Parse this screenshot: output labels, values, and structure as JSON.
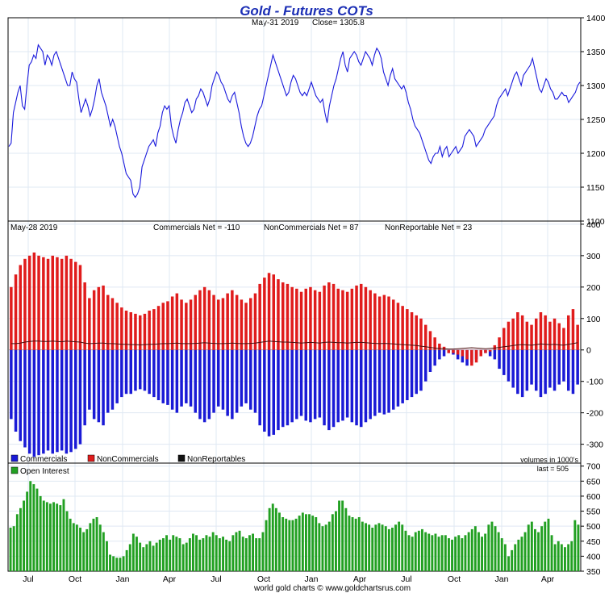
{
  "title": "Gold - Futures COTs",
  "footer": "world gold charts © www.goldchartsrus.com",
  "x_axis": {
    "labels": [
      "Jul",
      "Oct",
      "Jan",
      "Apr",
      "Jul",
      "Oct",
      "Jan",
      "Apr",
      "Jul",
      "Oct",
      "Jan",
      "Apr"
    ]
  },
  "price_panel": {
    "subtitle_date": "May-31  2019",
    "subtitle_close": "Close= 1305.8",
    "line_color": "#1a1adc",
    "ylim": [
      1100,
      1400
    ],
    "yticks": [
      "1400",
      "1350",
      "1300",
      "1250",
      "1200",
      "1150",
      "1100"
    ]
  },
  "cot_panel": {
    "date": "May-28  2019",
    "commercials_label": "Commercials Net = -110",
    "noncommercials_label": "NonCommercials Net = 87",
    "nonreportable_label": "NonReportable Net = 23",
    "volume_note": "volumes in 1000's",
    "ylim": [
      -360,
      410
    ],
    "yticks": [
      "400",
      "300",
      "200",
      "100",
      "0",
      "-100",
      "-200",
      "-300"
    ],
    "legend": [
      {
        "label": "Commercials",
        "color": "#1a1ad6"
      },
      {
        "label": "NonCommercials",
        "color": "#e01c1c"
      },
      {
        "label": "NonReportables",
        "color": "#111111"
      }
    ]
  },
  "oi_panel": {
    "legend_label": "Open Interest",
    "legend_color": "#22a022",
    "last_label": "last = 505",
    "ylim": [
      350,
      710
    ],
    "yticks": [
      "700",
      "650",
      "600",
      "550",
      "500",
      "450",
      "400",
      "350"
    ]
  },
  "chart_data": {
    "type": "line+bar",
    "title": "Gold - Futures COTs",
    "x_range": [
      "2017-06",
      "2019-05"
    ],
    "price_line": {
      "name": "Gold price",
      "values": [
        1210,
        1215,
        1260,
        1275,
        1290,
        1300,
        1270,
        1265,
        1300,
        1330,
        1335,
        1345,
        1340,
        1360,
        1355,
        1350,
        1330,
        1345,
        1340,
        1330,
        1345,
        1350,
        1340,
        1330,
        1320,
        1310,
        1300,
        1300,
        1320,
        1310,
        1305,
        1280,
        1260,
        1270,
        1280,
        1270,
        1255,
        1265,
        1280,
        1300,
        1310,
        1290,
        1280,
        1270,
        1255,
        1240,
        1250,
        1240,
        1225,
        1210,
        1200,
        1185,
        1170,
        1165,
        1160,
        1140,
        1135,
        1140,
        1150,
        1180,
        1190,
        1200,
        1210,
        1215,
        1220,
        1210,
        1230,
        1240,
        1260,
        1270,
        1265,
        1270,
        1240,
        1225,
        1215,
        1235,
        1250,
        1260,
        1275,
        1280,
        1270,
        1260,
        1265,
        1280,
        1285,
        1295,
        1290,
        1280,
        1270,
        1280,
        1300,
        1310,
        1320,
        1315,
        1305,
        1300,
        1290,
        1280,
        1275,
        1285,
        1290,
        1275,
        1260,
        1240,
        1225,
        1215,
        1210,
        1215,
        1225,
        1240,
        1255,
        1265,
        1270,
        1285,
        1300,
        1315,
        1330,
        1345,
        1335,
        1325,
        1315,
        1305,
        1295,
        1285,
        1290,
        1305,
        1315,
        1310,
        1300,
        1290,
        1285,
        1290,
        1285,
        1295,
        1305,
        1295,
        1285,
        1280,
        1275,
        1280,
        1260,
        1245,
        1270,
        1285,
        1300,
        1310,
        1325,
        1340,
        1350,
        1330,
        1320,
        1340,
        1345,
        1350,
        1345,
        1335,
        1330,
        1340,
        1350,
        1345,
        1340,
        1330,
        1345,
        1355,
        1350,
        1340,
        1320,
        1310,
        1300,
        1315,
        1325,
        1310,
        1305,
        1300,
        1295,
        1300,
        1290,
        1275,
        1265,
        1250,
        1240,
        1235,
        1230,
        1220,
        1210,
        1200,
        1190,
        1185,
        1195,
        1200,
        1200,
        1210,
        1195,
        1205,
        1210,
        1195,
        1200,
        1205,
        1210,
        1200,
        1205,
        1210,
        1225,
        1230,
        1235,
        1230,
        1225,
        1210,
        1215,
        1220,
        1225,
        1235,
        1240,
        1245,
        1250,
        1255,
        1270,
        1280,
        1285,
        1290,
        1295,
        1285,
        1295,
        1305,
        1315,
        1320,
        1310,
        1300,
        1315,
        1320,
        1325,
        1330,
        1340,
        1325,
        1310,
        1295,
        1290,
        1300,
        1310,
        1305,
        1295,
        1290,
        1280,
        1280,
        1285,
        1290,
        1285,
        1285,
        1275,
        1280,
        1285,
        1290,
        1300,
        1305
      ]
    },
    "cot_series": [
      {
        "name": "Commercials",
        "values": [
          -220,
          -260,
          -290,
          -310,
          -330,
          -340,
          -335,
          -330,
          -320,
          -330,
          -325,
          -320,
          -330,
          -325,
          -315,
          -300,
          -240,
          -190,
          -220,
          -230,
          -240,
          -200,
          -190,
          -170,
          -150,
          -140,
          -140,
          -130,
          -125,
          -130,
          -140,
          -150,
          -160,
          -170,
          -175,
          -190,
          -200,
          -180,
          -170,
          -180,
          -200,
          -220,
          -230,
          -220,
          -200,
          -180,
          -190,
          -210,
          -220,
          -200,
          -180,
          -170,
          -190,
          -200,
          -240,
          -260,
          -275,
          -270,
          -255,
          -245,
          -240,
          -230,
          -220,
          -210,
          -225,
          -230,
          -220,
          -215,
          -240,
          -255,
          -245,
          -230,
          -225,
          -215,
          -230,
          -240,
          -245,
          -230,
          -220,
          -210,
          -200,
          -205,
          -200,
          -190,
          -180,
          -170,
          -160,
          -150,
          -140,
          -130,
          -100,
          -70,
          -50,
          -30,
          -20,
          -10,
          -15,
          -30,
          -40,
          -50,
          -40,
          -30,
          -20,
          -10,
          -20,
          -30,
          -60,
          -80,
          -100,
          -120,
          -140,
          -150,
          -130,
          -110,
          -130,
          -150,
          -140,
          -120,
          -130,
          -110,
          -100,
          -130,
          -140,
          -110
        ],
        "color": "#1a1ad6"
      },
      {
        "name": "NonCommercials",
        "values": [
          200,
          240,
          270,
          290,
          300,
          310,
          300,
          295,
          290,
          300,
          295,
          290,
          300,
          290,
          280,
          270,
          215,
          165,
          190,
          200,
          205,
          175,
          165,
          150,
          135,
          125,
          120,
          115,
          110,
          115,
          125,
          130,
          140,
          150,
          155,
          170,
          180,
          160,
          150,
          160,
          175,
          190,
          200,
          190,
          175,
          160,
          165,
          180,
          190,
          175,
          160,
          150,
          165,
          180,
          210,
          230,
          245,
          240,
          225,
          215,
          210,
          200,
          195,
          185,
          195,
          200,
          190,
          185,
          205,
          215,
          210,
          195,
          190,
          185,
          195,
          205,
          210,
          200,
          190,
          180,
          170,
          175,
          170,
          160,
          150,
          140,
          130,
          120,
          110,
          100,
          80,
          60,
          40,
          20,
          10,
          -10,
          -10,
          -15,
          -20,
          -30,
          -50,
          -40,
          -20,
          -10,
          -5,
          15,
          40,
          70,
          90,
          100,
          120,
          110,
          90,
          80,
          100,
          120,
          110,
          90,
          100,
          85,
          70,
          110,
          130,
          80
        ],
        "color": "#e01c1c"
      },
      {
        "name": "NonReportables",
        "values": [
          20,
          20,
          22,
          25,
          27,
          28,
          28,
          27,
          27,
          28,
          27,
          26,
          28,
          27,
          26,
          25,
          22,
          20,
          21,
          22,
          22,
          20,
          20,
          19,
          18,
          18,
          17,
          17,
          16,
          17,
          18,
          18,
          19,
          20,
          20,
          21,
          22,
          20,
          20,
          20,
          21,
          22,
          23,
          22,
          21,
          20,
          20,
          21,
          22,
          21,
          20,
          20,
          21,
          22,
          24,
          26,
          28,
          27,
          26,
          25,
          25,
          24,
          23,
          22,
          23,
          24,
          23,
          22,
          24,
          25,
          24,
          23,
          23,
          22,
          23,
          24,
          24,
          23,
          22,
          21,
          20,
          21,
          20,
          19,
          18,
          17,
          16,
          15,
          14,
          12,
          10,
          8,
          6,
          5,
          4,
          3,
          3,
          4,
          5,
          6,
          7,
          6,
          5,
          4,
          5,
          6,
          8,
          10,
          12,
          14,
          16,
          17,
          16,
          15,
          17,
          19,
          18,
          17,
          18,
          16,
          15,
          18,
          20,
          23
        ],
        "color": "#111111"
      }
    ],
    "open_interest": {
      "name": "Open Interest",
      "values": [
        495,
        500,
        540,
        560,
        585,
        615,
        650,
        640,
        625,
        600,
        585,
        580,
        575,
        580,
        575,
        570,
        590,
        550,
        525,
        510,
        505,
        495,
        480,
        490,
        510,
        525,
        530,
        505,
        480,
        450,
        405,
        400,
        395,
        395,
        400,
        420,
        440,
        475,
        465,
        445,
        430,
        440,
        450,
        435,
        445,
        455,
        460,
        470,
        455,
        470,
        465,
        460,
        440,
        445,
        460,
        475,
        470,
        455,
        460,
        470,
        465,
        480,
        470,
        460,
        465,
        455,
        450,
        470,
        480,
        485,
        465,
        460,
        470,
        475,
        460,
        460,
        480,
        520,
        560,
        575,
        560,
        545,
        530,
        525,
        520,
        520,
        525,
        535,
        545,
        540,
        540,
        535,
        530,
        510,
        500,
        505,
        515,
        540,
        550,
        585,
        585,
        560,
        535,
        530,
        525,
        530,
        515,
        510,
        505,
        495,
        505,
        510,
        505,
        500,
        490,
        495,
        505,
        515,
        505,
        485,
        470,
        465,
        480,
        485,
        490,
        480,
        475,
        470,
        475,
        465,
        470,
        470,
        460,
        455,
        465,
        470,
        460,
        470,
        480,
        490,
        500,
        480,
        465,
        475,
        505,
        515,
        500,
        480,
        460,
        440,
        400,
        420,
        440,
        455,
        465,
        480,
        505,
        515,
        490,
        480,
        500,
        515,
        525,
        470,
        440,
        450,
        440,
        430,
        440,
        450,
        520,
        505
      ]
    },
    "price_ylim": [
      1100,
      1400
    ],
    "cot_ylim": [
      -360,
      410
    ],
    "oi_ylim": [
      350,
      710
    ],
    "grid": true
  }
}
